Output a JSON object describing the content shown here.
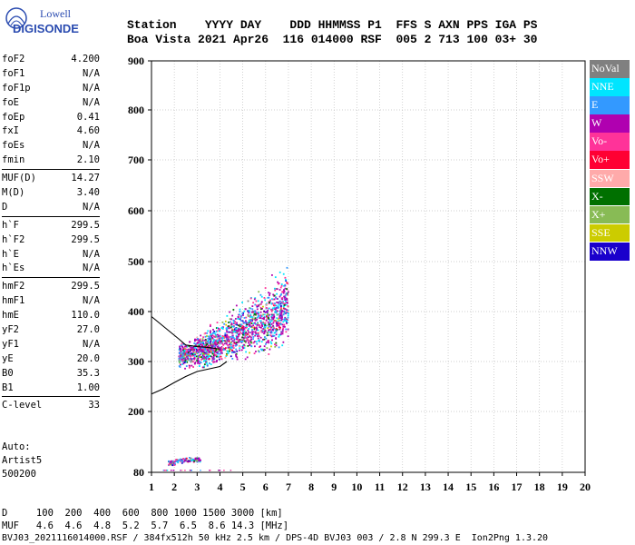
{
  "brand": {
    "line1": "Lowell",
    "line2": "DIGISONDE"
  },
  "header": {
    "line1": "Station    YYYY DAY    DDD HHMMSS P1  FFS S AXN PPS IGA PS",
    "line2": "Boa Vista 2021 Apr26  116 014000 RSF  005 2 713 100 03+ 30"
  },
  "params": [
    {
      "group": [
        {
          "k": "foF2",
          "v": "4.200"
        },
        {
          "k": "foF1",
          "v": "N/A"
        },
        {
          "k": "foF1p",
          "v": "N/A"
        },
        {
          "k": "foE",
          "v": "N/A"
        },
        {
          "k": "foEp",
          "v": "0.41"
        },
        {
          "k": "fxI",
          "v": "4.60"
        },
        {
          "k": "foEs",
          "v": "N/A"
        },
        {
          "k": "fmin",
          "v": "2.10"
        }
      ]
    },
    {
      "group": [
        {
          "k": "MUF(D)",
          "v": "14.27"
        },
        {
          "k": "M(D)",
          "v": "3.40"
        },
        {
          "k": "D",
          "v": "N/A"
        }
      ]
    },
    {
      "group": [
        {
          "k": "h`F",
          "v": "299.5"
        },
        {
          "k": "h`F2",
          "v": "299.5"
        },
        {
          "k": "h`E",
          "v": "N/A"
        },
        {
          "k": "h`Es",
          "v": "N/A"
        }
      ]
    },
    {
      "group": [
        {
          "k": "hmF2",
          "v": "299.5"
        },
        {
          "k": "hmF1",
          "v": "N/A"
        },
        {
          "k": "hmE",
          "v": "110.0"
        },
        {
          "k": "yF2",
          "v": "27.0"
        },
        {
          "k": "yF1",
          "v": "N/A"
        },
        {
          "k": "yE",
          "v": "20.0"
        },
        {
          "k": "B0",
          "v": "35.3"
        },
        {
          "k": "B1",
          "v": "1.00"
        }
      ]
    },
    {
      "group": [
        {
          "k": "C-level",
          "v": "33"
        }
      ]
    }
  ],
  "auto": {
    "l1": "Auto:",
    "l2": "Artist5",
    "l3": "500200"
  },
  "mufTable": {
    "dRow": "D     100  200  400  600  800 1000 1500 3000 [km]",
    "mufRow": "MUF   4.6  4.6  4.8  5.2  5.7  6.5  8.6 14.3 [MHz]"
  },
  "footer": "BVJ03_2021116014000.RSF / 384fx512h 50 kHz 2.5 km / DPS-4D BVJ03 003 / 2.8 N 299.3 E  Ion2Png 1.3.20",
  "legend": [
    {
      "label": "NoVal",
      "color": "#808080"
    },
    {
      "label": "NNE",
      "color": "#00e5ff"
    },
    {
      "label": "E",
      "color": "#3399ff"
    },
    {
      "label": "W",
      "color": "#b000b0"
    },
    {
      "label": "Vo-",
      "color": "#ff3399"
    },
    {
      "label": "Vo+",
      "color": "#ff0033"
    },
    {
      "label": "SSW",
      "color": "#ffaaaa"
    },
    {
      "label": "X-",
      "color": "#007000"
    },
    {
      "label": "X+",
      "color": "#88bb55"
    },
    {
      "label": "SSE",
      "color": "#cccc00"
    },
    {
      "label": "NNW",
      "color": "#1a00cc"
    }
  ],
  "chart_data": {
    "type": "scatter",
    "title": "",
    "xlabel": "",
    "ylabel": "",
    "xlim": [
      1,
      20
    ],
    "ylim": [
      80,
      900
    ],
    "xticks": [
      1,
      2,
      3,
      4,
      5,
      6,
      7,
      8,
      9,
      10,
      11,
      12,
      13,
      14,
      15,
      16,
      17,
      18,
      19,
      20
    ],
    "yticks": [
      80,
      200,
      300,
      400,
      500,
      600,
      700,
      800,
      900
    ],
    "yscale": "nonlinear",
    "grid": true,
    "legend_position": "right",
    "ionogram_F_trace": {
      "x": [
        2.2,
        2.8,
        3.4,
        3.9,
        4.3,
        4.9,
        5.6,
        6.3,
        7.0
      ],
      "y": [
        305,
        310,
        320,
        330,
        338,
        355,
        370,
        385,
        405
      ]
    },
    "ionogram_E_echoes": {
      "x": [
        1.9,
        2.2,
        2.5,
        2.8,
        3.0
      ],
      "y": [
        98,
        102,
        104,
        105,
        104
      ]
    },
    "profile_curve_upper": {
      "x": [
        1.0,
        1.4,
        1.8,
        2.2,
        2.5,
        3.0,
        3.5,
        4.0
      ],
      "y": [
        390,
        375,
        360,
        345,
        333,
        330,
        328,
        325
      ]
    },
    "profile_curve_lower": {
      "x": [
        1.0,
        1.5,
        2.0,
        2.5,
        3.0,
        3.5,
        4.0,
        4.3
      ],
      "y": [
        235,
        245,
        258,
        270,
        280,
        285,
        290,
        300
      ]
    }
  }
}
